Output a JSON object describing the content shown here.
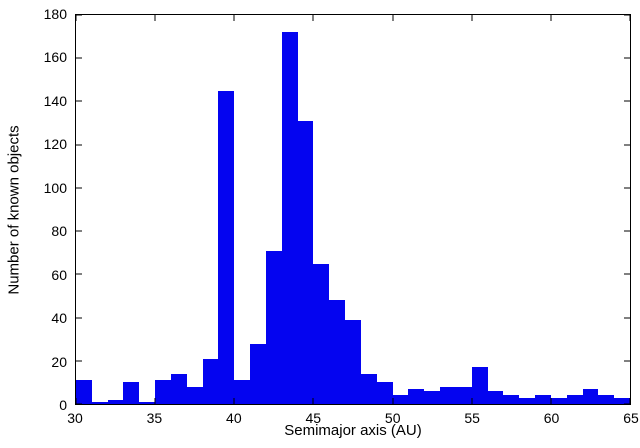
{
  "chart_data": {
    "type": "bar",
    "title": "",
    "xlabel": "Semimajor axis (AU)",
    "ylabel": "Number of known objects",
    "xlim": [
      30,
      65
    ],
    "ylim": [
      0,
      180
    ],
    "bin_start": 30,
    "bin_width": 1,
    "x_ticks": [
      30,
      35,
      40,
      45,
      50,
      55,
      60,
      65
    ],
    "y_ticks": [
      0,
      20,
      40,
      60,
      80,
      100,
      120,
      140,
      160,
      180
    ],
    "bar_color": "#0404f0",
    "axis_color": "#000000",
    "background_color": "#ffffff",
    "grid": false,
    "legend": null,
    "bins": [
      30,
      31,
      32,
      33,
      34,
      35,
      36,
      37,
      38,
      39,
      40,
      41,
      42,
      43,
      44,
      45,
      46,
      47,
      48,
      49,
      50,
      51,
      52,
      53,
      54,
      55,
      56,
      57,
      58,
      59,
      60,
      61,
      62,
      63,
      64
    ],
    "values": [
      11,
      1,
      2,
      10,
      1,
      11,
      14,
      8,
      21,
      145,
      11,
      28,
      71,
      172,
      131,
      65,
      48,
      39,
      14,
      10,
      4,
      7,
      6,
      8,
      8,
      17,
      6,
      4,
      3,
      4,
      3,
      4,
      7,
      4,
      3
    ]
  }
}
